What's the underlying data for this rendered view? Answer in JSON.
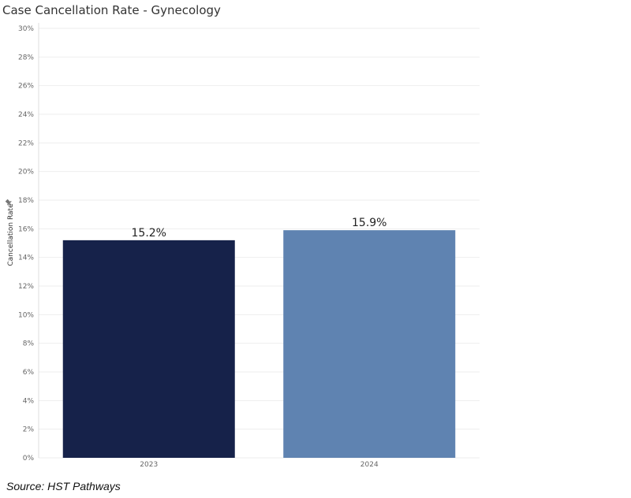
{
  "chart_data": {
    "type": "bar",
    "title": "Case Cancellation Rate - Gynecology",
    "xlabel": "",
    "ylabel": "Cancellation Rate",
    "categories": [
      "2023",
      "2024"
    ],
    "values": [
      15.2,
      15.9
    ],
    "data_labels": [
      "15.2%",
      "15.9%"
    ],
    "ylim": [
      0,
      30
    ],
    "yticks": [
      0,
      2,
      4,
      6,
      8,
      10,
      12,
      14,
      16,
      18,
      20,
      22,
      24,
      26,
      28,
      30
    ],
    "ytick_suffix": "%",
    "bar_colors": [
      "#16224a",
      "#5f83b1"
    ],
    "grid": true,
    "legend": "none"
  },
  "source": "Source: HST Pathways",
  "pin_icon": "pin-icon"
}
